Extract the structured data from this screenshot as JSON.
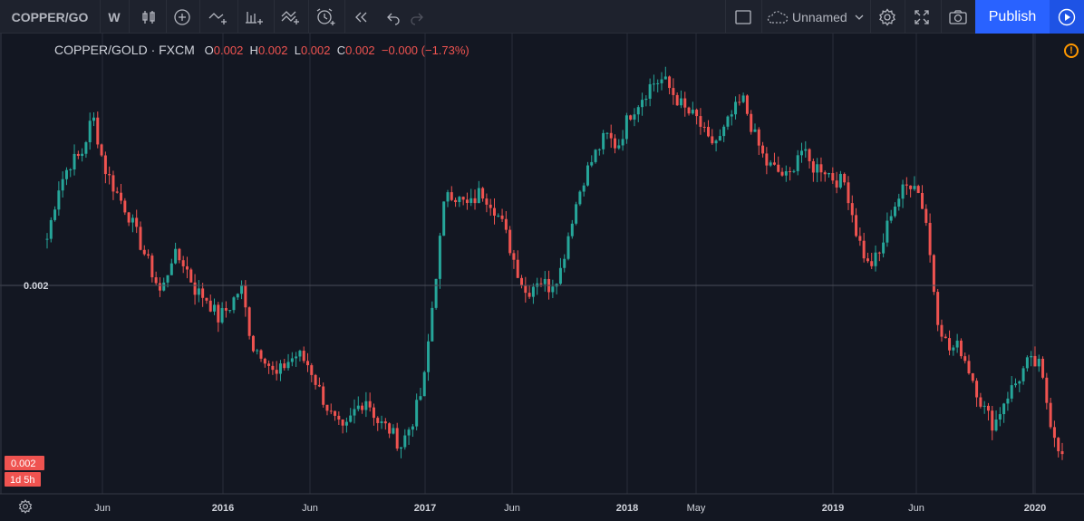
{
  "toolbar": {
    "symbol": "COPPER/GO",
    "interval": "W",
    "layout_name": "Unnamed",
    "publish_label": "Publish",
    "icons": [
      "candles-icon",
      "add-indicator-icon",
      "compare-icon",
      "indicators-icon",
      "templates-icon",
      "alert-icon",
      "replay-icon",
      "undo-icon",
      "redo-icon",
      "layout-icon",
      "cloud-icon",
      "settings-icon",
      "fullscreen-icon",
      "camera-icon",
      "stream-icon"
    ]
  },
  "legend": {
    "symbol": "COPPER/GOLD · FXCM",
    "open_label": "O",
    "open": "0.002",
    "high_label": "H",
    "high": "0.002",
    "low_label": "L",
    "low": "0.002",
    "close_label": "C",
    "close": "0.002",
    "change": "−0.000 (−1.73%)"
  },
  "price_axis": {
    "tick_label": "0.002",
    "current_price": "0.002",
    "countdown": "1d 5h"
  },
  "colors": {
    "up": "#26a69a",
    "down": "#ef5350",
    "background": "#131722",
    "grid": "#2a2e39",
    "accent": "#2962ff"
  },
  "chart_data": {
    "type": "candlestick",
    "title": "COPPER/GOLD · FXCM",
    "interval": "W",
    "x_ticks": [
      "Jun",
      "2016",
      "Jun",
      "2017",
      "Jun",
      "2018",
      "May",
      "2019",
      "Jun",
      "2020"
    ],
    "x_range": [
      "2015-02",
      "2020-03"
    ],
    "y_ticks": [
      "0.002"
    ],
    "grid": true,
    "last_change_percent": -1.73,
    "trend_values": [
      0.00215,
      0.00228,
      0.00234,
      0.00236,
      0.00246,
      0.00233,
      0.00227,
      0.00222,
      0.00215,
      0.00208,
      0.00201,
      0.00211,
      0.00209,
      0.00202,
      0.002,
      0.00195,
      0.00198,
      0.00203,
      0.00188,
      0.00186,
      0.0018,
      0.00184,
      0.00186,
      0.00183,
      0.00176,
      0.0017,
      0.00166,
      0.00172,
      0.00175,
      0.00169,
      0.00167,
      0.00163,
      0.00169,
      0.00178,
      0.00204,
      0.00228,
      0.00225,
      0.00223,
      0.00227,
      0.00224,
      0.00218,
      0.00209,
      0.00201,
      0.00205,
      0.00203,
      0.00207,
      0.0022,
      0.0023,
      0.00236,
      0.00241,
      0.00238,
      0.00246,
      0.0025,
      0.00254,
      0.00255,
      0.00251,
      0.00247,
      0.00245,
      0.00239,
      0.0024,
      0.00246,
      0.0025,
      0.00241,
      0.00234,
      0.00232,
      0.0023,
      0.00238,
      0.00233,
      0.00233,
      0.0023,
      0.00229,
      0.00216,
      0.00208,
      0.00211,
      0.00222,
      0.00227,
      0.0023,
      0.00221,
      0.00196,
      0.00187,
      0.00188,
      0.00181,
      0.00173,
      0.00168,
      0.00175,
      0.00179,
      0.00184,
      0.00183,
      0.00169,
      0.0016
    ]
  }
}
